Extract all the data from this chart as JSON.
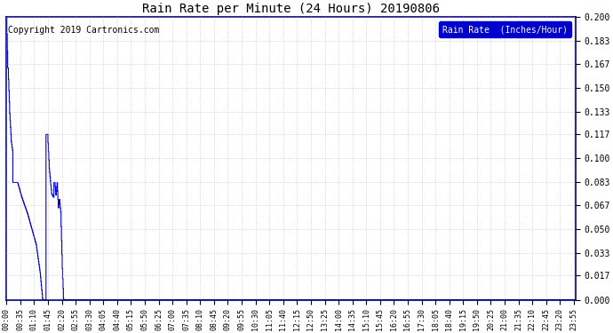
{
  "title": "Rain Rate per Minute (24 Hours) 20190806",
  "copyright_text": "Copyright 2019 Cartronics.com",
  "legend_label": "Rain Rate  (Inches/Hour)",
  "background_color": "#ffffff",
  "plot_bg_color": "#ffffff",
  "line_color": "#0000cc",
  "legend_bg_color": "#0000cc",
  "legend_text_color": "#ffffff",
  "grid_color": "#aaaaaa",
  "ylim": [
    0.0,
    0.2
  ],
  "yticks": [
    0.0,
    0.017,
    0.033,
    0.05,
    0.067,
    0.083,
    0.1,
    0.117,
    0.133,
    0.15,
    0.167,
    0.183,
    0.2
  ],
  "total_minutes": 1440,
  "tick_interval_minutes": 35,
  "figsize": [
    6.9,
    3.75
  ],
  "dpi": 100,
  "title_fontsize": 10,
  "tick_fontsize": 6,
  "ytick_fontsize": 7,
  "copyright_fontsize": 7,
  "legend_fontsize": 7,
  "linewidth": 0.8
}
